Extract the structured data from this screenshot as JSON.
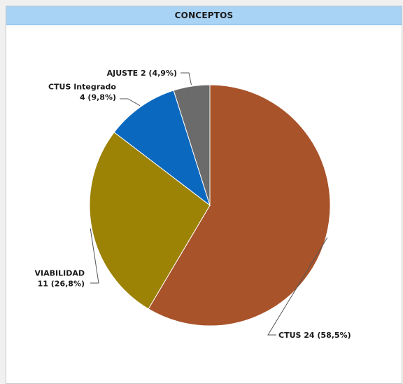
{
  "panel": {
    "title": "CONCEPTOS"
  },
  "colors": {
    "header_bg": "#a9d3f5",
    "slices": [
      "#a9532a",
      "#9c8205",
      "#0b68bf",
      "#6b6b6b"
    ]
  },
  "chart_data": {
    "type": "pie",
    "title": "CONCEPTOS",
    "slices": [
      {
        "name": "CTUS",
        "value": 24,
        "percent": 58.5,
        "label_lines": [
          "CTUS 24 (58,5%)"
        ]
      },
      {
        "name": "VIABILIDAD",
        "value": 11,
        "percent": 26.8,
        "label_lines": [
          "VIABILIDAD",
          "11 (26,8%)"
        ]
      },
      {
        "name": "CTUS Integrado",
        "value": 4,
        "percent": 9.8,
        "label_lines": [
          "CTUS Integrado",
          "4 (9,8%)"
        ]
      },
      {
        "name": "AJUSTE",
        "value": 2,
        "percent": 4.9,
        "label_lines": [
          "AJUSTE 2 (4,9%)"
        ]
      }
    ],
    "start": "12 o'clock",
    "direction": "clockwise",
    "legend": "none"
  }
}
